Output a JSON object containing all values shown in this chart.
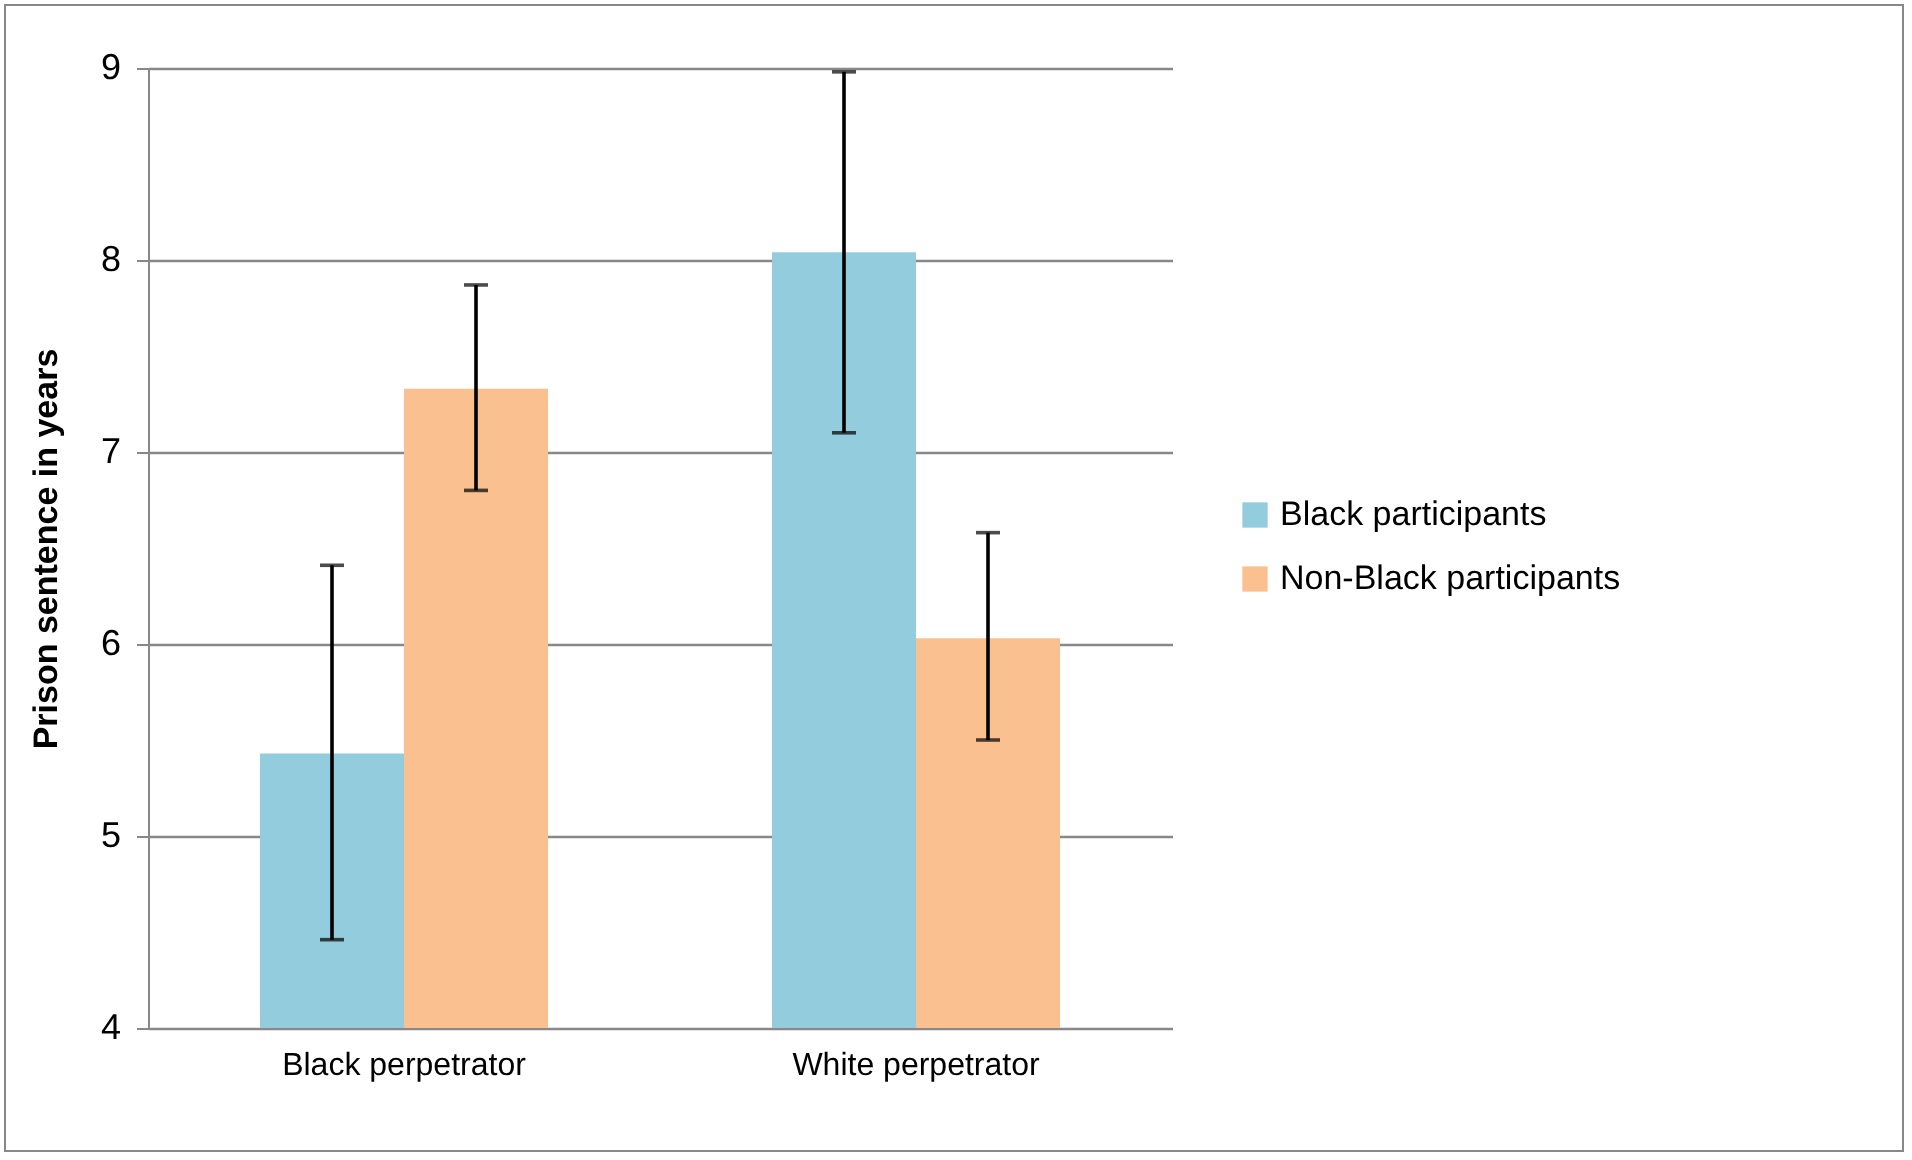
{
  "chart_data": {
    "type": "bar",
    "ylabel": "Prison sentence in years",
    "categories": [
      "Black perpetrator",
      "White perpetrator"
    ],
    "series": [
      {
        "name": "Black participants",
        "color": "#93cddd",
        "values": [
          5.43,
          8.04
        ],
        "errors": [
          [
            4.46,
            6.41
          ],
          [
            7.1,
            8.98
          ]
        ]
      },
      {
        "name": "Non-Black participants",
        "color": "#fac090",
        "values": [
          7.33,
          6.03
        ],
        "errors": [
          [
            6.8,
            7.87
          ],
          [
            5.5,
            6.58
          ]
        ]
      }
    ],
    "ylim": [
      4,
      9
    ],
    "yticks": [
      4,
      5,
      6,
      7,
      8,
      9
    ],
    "grid": "y",
    "legend": "right"
  }
}
